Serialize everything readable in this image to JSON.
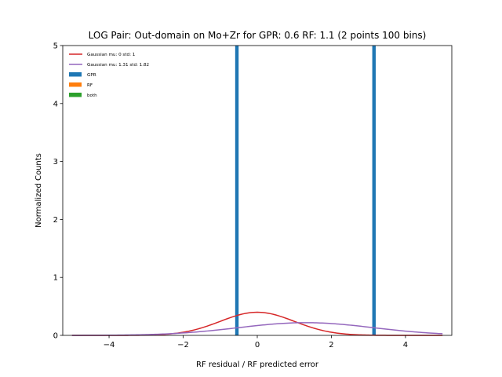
{
  "chart_data": {
    "type": "bar",
    "title": "LOG Pair: Out-domain on Mo+Zr for GPR: 0.6 RF: 1.1 (2 points 100 bins)",
    "xlabel": "RF residual / RF predicted error",
    "ylabel": "Normalized Counts",
    "xlim": [
      -5.25,
      5.25
    ],
    "ylim": [
      0,
      5
    ],
    "x_ticks": [
      -4,
      -2,
      0,
      2,
      4
    ],
    "x_tick_labels": [
      "−4",
      "−2",
      "0",
      "2",
      "4"
    ],
    "y_ticks": [
      0,
      1,
      2,
      3,
      4,
      5
    ],
    "y_tick_labels": [
      "0",
      "1",
      "2",
      "3",
      "4",
      "5"
    ],
    "grid": false,
    "legend_position": "top-left",
    "curves": [
      {
        "name": "Gaussian mu: 0 std: 1",
        "mu": 0,
        "std": 1,
        "x_range": [
          -5,
          5
        ],
        "color": "#d62728"
      },
      {
        "name": "Gaussian mu: 1.31 std: 1.82",
        "mu": 1.31,
        "std": 1.82,
        "x_range": [
          -5,
          5
        ],
        "color": "#9467bd"
      }
    ],
    "histograms": [
      {
        "name": "GPR",
        "color": "#1f77b4",
        "bars": [
          {
            "x": -0.55,
            "height": 5
          },
          {
            "x": 3.15,
            "height": 5
          }
        ]
      },
      {
        "name": "RF",
        "color": "#ff7f0e",
        "bars": []
      },
      {
        "name": "both",
        "color": "#2ca02c",
        "bars": []
      }
    ]
  }
}
